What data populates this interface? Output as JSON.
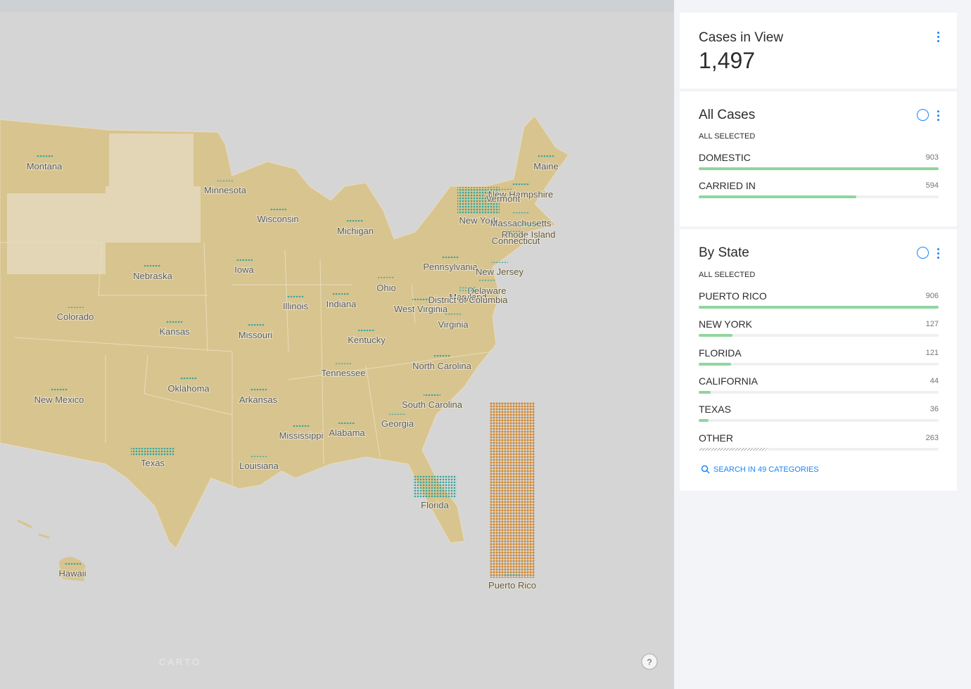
{
  "map": {
    "labels": [
      "Montana",
      "Minnesota",
      "Wisconsin",
      "Michigan",
      "Maine",
      "New Hampshire",
      "Vermont",
      "New York",
      "Massachusetts",
      "Rhode Island",
      "Connecticut",
      "Pennsylvania",
      "New Jersey",
      "Delaware",
      "Maryland",
      "District of Columbia",
      "Nebraska",
      "Iowa",
      "Illinois",
      "Indiana",
      "Ohio",
      "West Virginia",
      "Virginia",
      "Colorado",
      "Kansas",
      "Missouri",
      "Kentucky",
      "Tennessee",
      "North Carolina",
      "Oklahoma",
      "Arkansas",
      "New Mexico",
      "South Carolina",
      "Georgia",
      "Mississippi",
      "Alabama",
      "Texas",
      "Louisiana",
      "Florida",
      "Hawaii",
      "Puerto Rico"
    ],
    "attribution": "CARTO",
    "help": "?"
  },
  "widgets": {
    "cases_in_view": {
      "title": "Cases in View",
      "value": "1,497"
    },
    "all_cases": {
      "title": "All Cases",
      "status": "ALL SELECTED",
      "items": [
        {
          "label": "DOMESTIC",
          "value": 903
        },
        {
          "label": "CARRIED IN",
          "value": 594
        }
      ]
    },
    "by_state": {
      "title": "By State",
      "status": "ALL SELECTED",
      "items": [
        {
          "label": "PUERTO RICO",
          "value": 906
        },
        {
          "label": "NEW YORK",
          "value": 127
        },
        {
          "label": "FLORIDA",
          "value": 121
        },
        {
          "label": "CALIFORNIA",
          "value": 44
        },
        {
          "label": "TEXAS",
          "value": 36
        },
        {
          "label": "OTHER",
          "value": 263
        }
      ],
      "search": "SEARCH IN 49 CATEGORIES"
    }
  }
}
